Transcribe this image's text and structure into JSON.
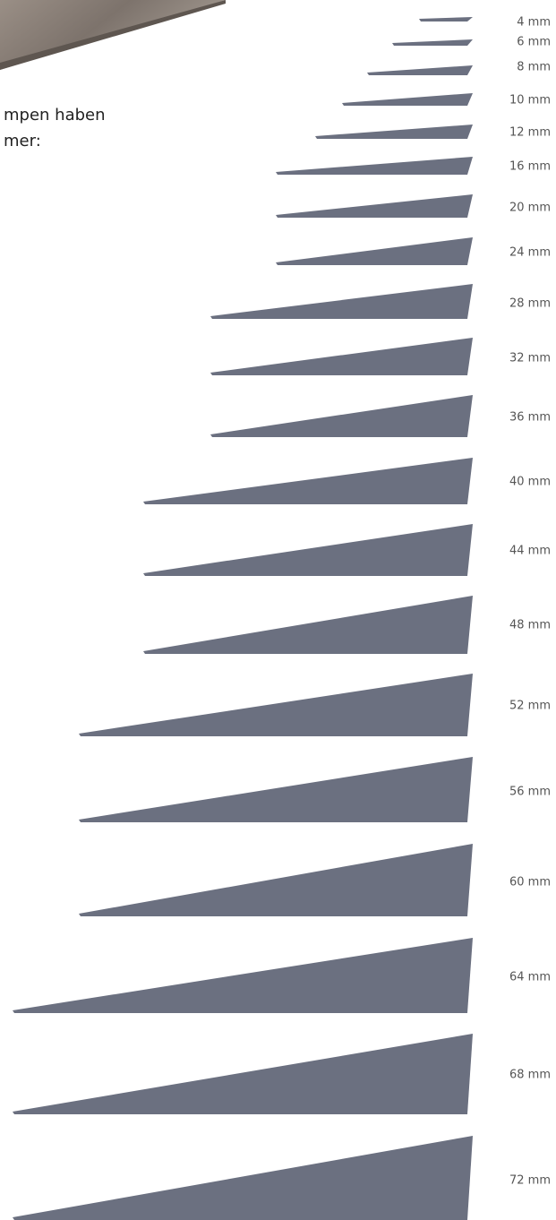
{
  "intro": {
    "lines": [
      "mpen haben",
      "mer:"
    ]
  },
  "sizes": [
    "4 mm",
    "6 mm",
    "8 mm",
    "10 mm",
    "12 mm",
    "16 mm",
    "20 mm",
    "24 mm",
    "28 mm",
    "32 mm",
    "36 mm",
    "40 mm",
    "44 mm",
    "48 mm",
    "52 mm",
    "56 mm",
    "60 mm",
    "64 mm",
    "68 mm",
    "72 mm"
  ]
}
